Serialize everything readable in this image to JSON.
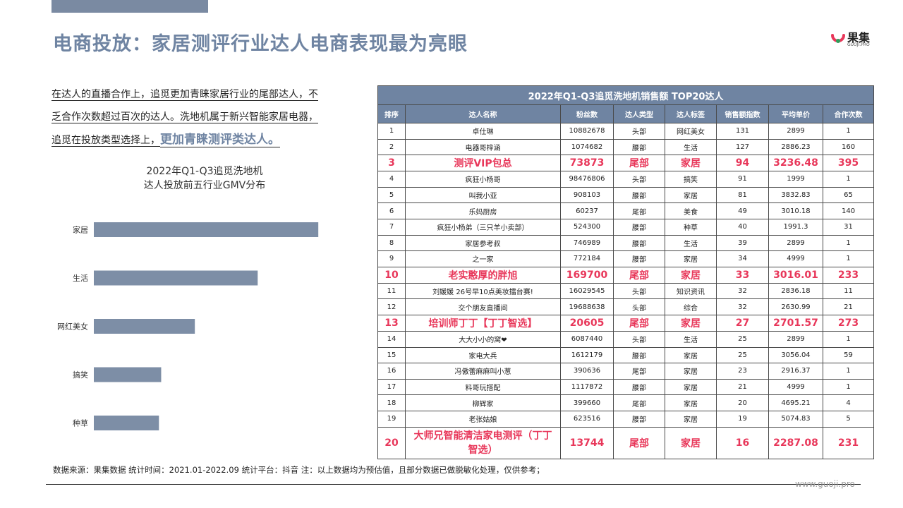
{
  "title": "电商投放：家居测评行业达人电商表现最为亮眼",
  "logo": {
    "name": "果集",
    "sub": "GUOJI.PRO"
  },
  "intro": {
    "line1": "在达人的直播合作上，追觅更加青睐家居行业的尾部达人，不",
    "line2": "乏合作次数超过百次的达人。洗地机属于新兴智能家居电器，",
    "line3a": "追觅在投放类型选择上，",
    "line3b": "更加青睐测评类达人。"
  },
  "chart_data": {
    "type": "bar",
    "orientation": "horizontal",
    "title_line1": "2022年Q1-Q3追觅洗地机",
    "title_line2": "达人投放前五行业GMV分布",
    "categories": [
      "家居",
      "生活",
      "网红美女",
      "搞笑",
      "种草"
    ],
    "values": [
      100,
      73,
      45,
      30,
      29
    ],
    "xlim": [
      0,
      110
    ],
    "axis_ticks": false,
    "grid": false,
    "bar_color": "#7d8ea6"
  },
  "table": {
    "title": "2022年Q1-Q3追觅洗地机销售额 TOP20达人",
    "headers": [
      "排序",
      "达人名称",
      "粉丝数",
      "达人类型",
      "达人标签",
      "销售额指数",
      "平均单价",
      "合作次数"
    ],
    "rows": [
      [
        "1",
        "卓仕琳",
        "10882678",
        "头部",
        "网红美女",
        "131",
        "2899",
        "1"
      ],
      [
        "2",
        "电器哥梓涵",
        "1074682",
        "腰部",
        "生活",
        "127",
        "2886.23",
        "160"
      ],
      [
        "3",
        "测评VIP包总",
        "73873",
        "尾部",
        "家居",
        "94",
        "3236.48",
        "395"
      ],
      [
        "4",
        "疯狂小杨哥",
        "98476806",
        "头部",
        "搞笑",
        "91",
        "1999",
        "1"
      ],
      [
        "5",
        "叫我小亚",
        "908103",
        "腰部",
        "家居",
        "81",
        "3832.83",
        "65"
      ],
      [
        "6",
        "乐妈厨房",
        "60237",
        "尾部",
        "美食",
        "49",
        "3010.18",
        "140"
      ],
      [
        "7",
        "疯狂小杨弟（三只羊小卖部）",
        "524300",
        "腰部",
        "种草",
        "40",
        "1991.3",
        "31"
      ],
      [
        "8",
        "家居参考叔",
        "746989",
        "腰部",
        "生活",
        "39",
        "2899",
        "1"
      ],
      [
        "9",
        "之一家",
        "772184",
        "腰部",
        "家居",
        "34",
        "4999",
        "1"
      ],
      [
        "10",
        "老实憨厚的胖旭",
        "169700",
        "尾部",
        "家居",
        "33",
        "3016.01",
        "233"
      ],
      [
        "11",
        "刘媛媛  26号早10点美妆擂台赛!",
        "16029545",
        "头部",
        "知识资讯",
        "32",
        "2836.18",
        "11"
      ],
      [
        "12",
        "交个朋友直播间",
        "19688638",
        "头部",
        "综合",
        "32",
        "2630.99",
        "21"
      ],
      [
        "13",
        "培训师丁丁【丁丁智选】",
        "20605",
        "尾部",
        "家居",
        "27",
        "2701.57",
        "273"
      ],
      [
        "14",
        "大大小小的窝❤",
        "6087440",
        "头部",
        "生活",
        "25",
        "2899",
        "1"
      ],
      [
        "15",
        "家电大兵",
        "1612179",
        "腰部",
        "家居",
        "25",
        "3056.04",
        "59"
      ],
      [
        "16",
        "冯傲蕾麻麻叫小葱",
        "390636",
        "尾部",
        "家居",
        "23",
        "2916.37",
        "1"
      ],
      [
        "17",
        "料哥玩搭配",
        "1117872",
        "腰部",
        "家居",
        "21",
        "4999",
        "1"
      ],
      [
        "18",
        "柳辉家",
        "399660",
        "尾部",
        "家居",
        "20",
        "4695.21",
        "4"
      ],
      [
        "19",
        "老张姑娘",
        "623516",
        "腰部",
        "家居",
        "19",
        "5074.83",
        "5"
      ],
      [
        "20",
        "大师兄智能清洁家电测评（丁丁智选）",
        "13744",
        "尾部",
        "家居",
        "16",
        "2287.08",
        "231"
      ]
    ],
    "highlight_rows": [
      2,
      9,
      12,
      19
    ],
    "highlight_color": "#e8375a",
    "header_color": "#6f84a2"
  },
  "footer": {
    "text": "数据来源：果集数据      统计时间：2021.01-2022.09      统计平台：抖音      注：以上数据均为预估值，且部分数据已做脱敏化处理，仅供参考；",
    "url": "www.guoji.pro"
  }
}
